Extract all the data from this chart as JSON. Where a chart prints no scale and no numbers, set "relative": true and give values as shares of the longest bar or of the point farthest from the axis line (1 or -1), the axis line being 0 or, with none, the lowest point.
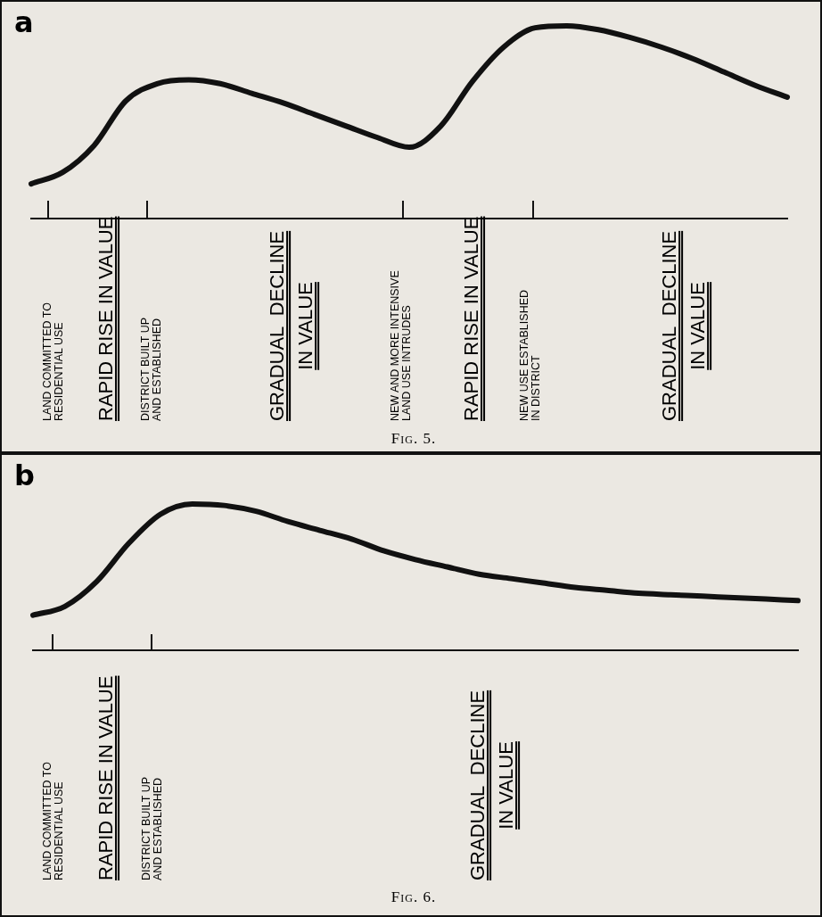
{
  "chart_data": [
    {
      "type": "line",
      "title": "a",
      "relative": true,
      "categories": [
        null,
        null,
        null,
        null,
        null,
        null,
        null,
        null,
        null,
        null,
        null,
        null,
        null,
        null,
        null,
        null,
        null,
        null,
        null,
        null,
        null,
        null,
        null,
        null,
        null
      ],
      "series": [
        {
          "color": "#111111",
          "values": [
            0.18,
            0.24,
            0.38,
            0.61,
            0.7,
            0.72,
            0.7,
            0.65,
            0.6,
            0.54,
            0.48,
            0.42,
            0.37,
            0.48,
            0.71,
            0.89,
            0.99,
            1,
            0.98,
            0.94,
            0.89,
            0.83,
            0.76,
            0.69,
            0.63
          ]
        }
      ],
      "annotations": [
        "LAND COMMITTED TO\nRESIDENTIAL USE",
        "RAPID RISE IN VALUE",
        "DISTRICT BUILT UP\nAND ESTABLISHED",
        "GRADUAL  DECLINE\nIN VALUE",
        "NEW AND MORE INTENSIVE\nLAND USE INTRUDES",
        "RAPID RISE IN VALUE",
        "NEW USE ESTABLISHED\nIN DISTRICT",
        "GRADUAL  DECLINE\nIN VALUE",
        "Fig. 5."
      ]
    },
    {
      "type": "line",
      "title": "b",
      "relative": true,
      "categories": [
        null,
        null,
        null,
        null,
        null,
        null,
        null,
        null,
        null,
        null,
        null,
        null,
        null,
        null,
        null,
        null,
        null,
        null,
        null,
        null,
        null,
        null,
        null,
        null,
        null
      ],
      "series": [
        {
          "color": "#111111",
          "values": [
            0.24,
            0.3,
            0.47,
            0.73,
            0.93,
            1,
            0.99,
            0.95,
            0.88,
            0.82,
            0.76,
            0.68,
            0.62,
            0.57,
            0.52,
            0.49,
            0.46,
            0.43,
            0.41,
            0.39,
            0.38,
            0.37,
            0.36,
            0.35,
            0.34
          ]
        }
      ],
      "annotations": [
        "LAND COMMITTED TO\nRESIDENTIAL USE",
        "RAPID RISE IN VALUE",
        "DISTRICT BUILT UP\nAND ESTABLISHED",
        "GRADUAL  DECLINE\nIN VALUE",
        "Fig. 6."
      ]
    }
  ]
}
